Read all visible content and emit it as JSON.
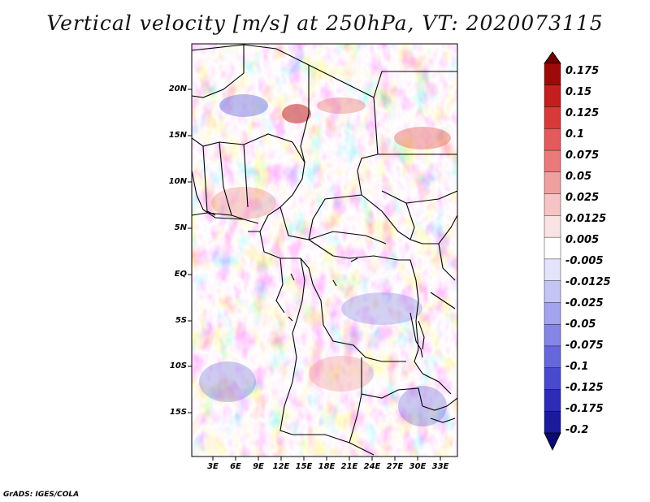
{
  "title": "Vertical velocity [m/s] at 250hPa, VT: 2020073115",
  "credit": "GrADS: IGES/COLA",
  "map": {
    "lon_range": [
      0,
      35
    ],
    "lat_range": [
      -20,
      25
    ],
    "xticks": [
      "3E",
      "6E",
      "9E",
      "12E",
      "15E",
      "18E",
      "21E",
      "24E",
      "27E",
      "30E",
      "33E"
    ],
    "yticks": [
      "20N",
      "15N",
      "10N",
      "5N",
      "EQ",
      "5S",
      "10S",
      "15S"
    ]
  },
  "colorbar": {
    "labels": [
      "0.175",
      "0.15",
      "0.125",
      "0.1",
      "0.075",
      "0.05",
      "0.025",
      "0.0125",
      "0.005",
      "-0.005",
      "-0.0125",
      "-0.025",
      "-0.05",
      "-0.075",
      "-0.1",
      "-0.125",
      "-0.175",
      "-0.2"
    ],
    "colors": [
      "#6e0000",
      "#9e0a0a",
      "#c41e1e",
      "#d83a3a",
      "#e45a5a",
      "#ea7a7a",
      "#f0a0a0",
      "#f6c4c4",
      "#fae3e3",
      "#ffffff",
      "#e3e3fb",
      "#c4c4f5",
      "#a3a3ef",
      "#8585e6",
      "#6767dc",
      "#4949cf",
      "#2c2cb8",
      "#1a1a9a",
      "#0a0a70"
    ]
  }
}
